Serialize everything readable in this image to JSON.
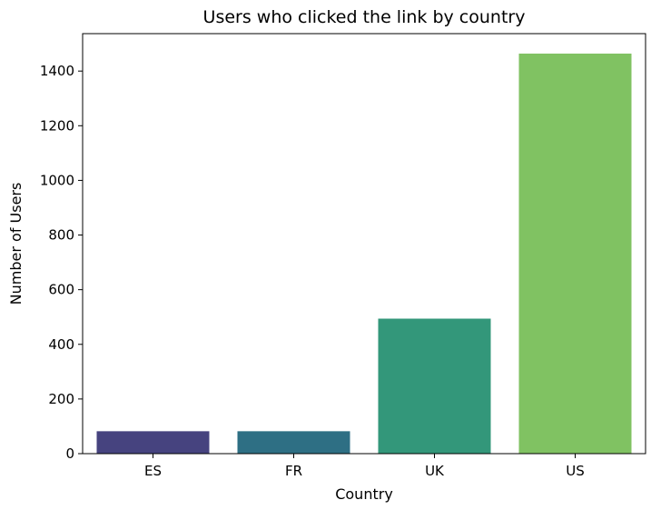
{
  "chart_data": {
    "type": "bar",
    "title": "Users who clicked the link by country",
    "xlabel": "Country",
    "ylabel": "Number of Users",
    "categories": [
      "ES",
      "FR",
      "UK",
      "US"
    ],
    "values": [
      82,
      82,
      494,
      1464
    ],
    "colors": [
      "#46437f",
      "#2e6f84",
      "#33977a",
      "#80c262"
    ],
    "ylim": [
      0,
      1537
    ],
    "yticks": [
      0,
      200,
      400,
      600,
      800,
      1000,
      1200,
      1400
    ],
    "grid": false,
    "legend": "none"
  }
}
